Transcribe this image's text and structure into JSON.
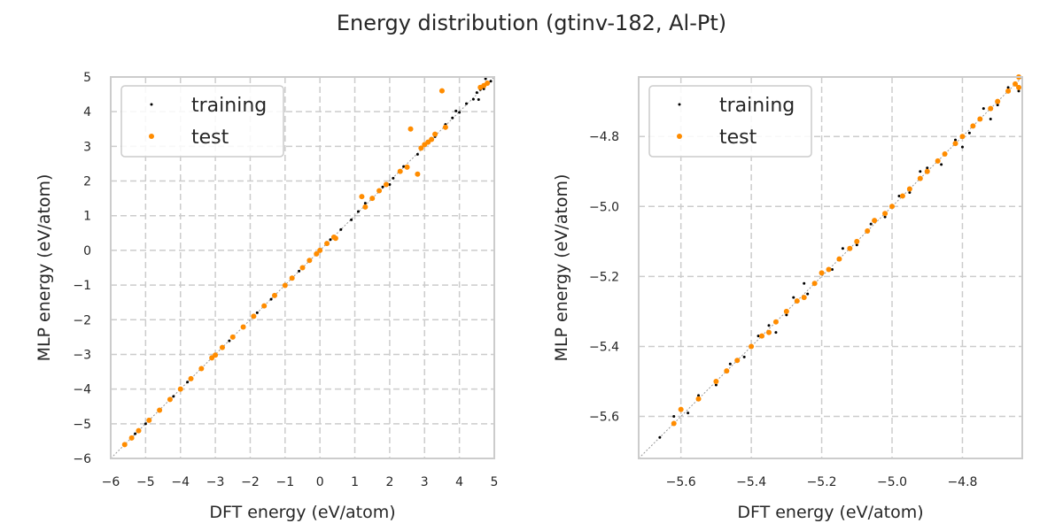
{
  "figure": {
    "title": "Energy distribution (gtinv-182, Al-Pt)"
  },
  "colors": {
    "training": "#000000",
    "test": "#ff8c00",
    "grid": "#cccccc",
    "diagonal": "#999999"
  },
  "chart_data": [
    {
      "type": "scatter",
      "xlabel": "DFT energy (eV/atom)",
      "ylabel": "MLP energy (eV/atom)",
      "xlim": [
        -6,
        5
      ],
      "ylim": [
        -6,
        5
      ],
      "xticks": [
        -6,
        -5,
        -4,
        -3,
        -2,
        -1,
        0,
        1,
        2,
        3,
        4,
        5
      ],
      "xtick_labels": [
        "−6",
        "−5",
        "−4",
        "−3",
        "−2",
        "−1",
        "0",
        "1",
        "2",
        "3",
        "4",
        "5"
      ],
      "yticks": [
        -6,
        -5,
        -4,
        -3,
        -2,
        -1,
        0,
        1,
        2,
        3,
        4,
        5
      ],
      "ytick_labels": [
        "−6",
        "−5",
        "−4",
        "−3",
        "−2",
        "−1",
        "0",
        "1",
        "2",
        "3",
        "4",
        "5"
      ],
      "grid": true,
      "legend_position": "top-left",
      "diagonal": true,
      "series": [
        {
          "name": "training",
          "color": "#000000",
          "points": [
            [
              -5.6,
              -5.6
            ],
            [
              -5.3,
              -5.29
            ],
            [
              -5.0,
              -5.0
            ],
            [
              -4.6,
              -4.6
            ],
            [
              -4.2,
              -4.21
            ],
            [
              -3.8,
              -3.8
            ],
            [
              -3.4,
              -3.4
            ],
            [
              -3.0,
              -3.0
            ],
            [
              -2.6,
              -2.61
            ],
            [
              -2.2,
              -2.2
            ],
            [
              -1.8,
              -1.8
            ],
            [
              -1.4,
              -1.41
            ],
            [
              -1.0,
              -1.0
            ],
            [
              -0.6,
              -0.6
            ],
            [
              -0.3,
              -0.3
            ],
            [
              0.0,
              0.0
            ],
            [
              0.3,
              0.31
            ],
            [
              0.6,
              0.6
            ],
            [
              0.9,
              0.88
            ],
            [
              1.1,
              1.12
            ],
            [
              1.5,
              1.47
            ],
            [
              1.8,
              1.83
            ],
            [
              2.1,
              2.08
            ],
            [
              2.4,
              2.42
            ],
            [
              2.8,
              2.77
            ],
            [
              3.1,
              3.14
            ],
            [
              3.3,
              3.28
            ],
            [
              3.6,
              3.63
            ],
            [
              3.8,
              3.82
            ],
            [
              4.0,
              3.98
            ],
            [
              4.2,
              4.23
            ],
            [
              4.4,
              4.36
            ],
            [
              4.5,
              4.55
            ],
            [
              4.6,
              4.64
            ],
            [
              4.7,
              4.66
            ],
            [
              4.8,
              4.84
            ],
            [
              4.9,
              4.88
            ],
            [
              4.55,
              4.35
            ],
            [
              4.75,
              4.95
            ],
            [
              2.0,
              1.9
            ],
            [
              1.3,
              1.36
            ],
            [
              3.9,
              4.02
            ]
          ]
        },
        {
          "name": "test",
          "color": "#ff8c00",
          "points": [
            [
              -5.6,
              -5.6
            ],
            [
              -5.4,
              -5.41
            ],
            [
              -5.2,
              -5.2
            ],
            [
              -4.9,
              -4.9
            ],
            [
              -4.6,
              -4.61
            ],
            [
              -4.3,
              -4.3
            ],
            [
              -4.0,
              -4.0
            ],
            [
              -3.7,
              -3.7
            ],
            [
              -3.4,
              -3.41
            ],
            [
              -3.1,
              -3.1
            ],
            [
              -3.0,
              -3.02
            ],
            [
              -2.8,
              -2.8
            ],
            [
              -2.5,
              -2.5
            ],
            [
              -2.2,
              -2.21
            ],
            [
              -1.9,
              -1.9
            ],
            [
              -1.6,
              -1.6
            ],
            [
              -1.3,
              -1.3
            ],
            [
              -1.0,
              -1.01
            ],
            [
              -0.8,
              -0.8
            ],
            [
              -0.5,
              -0.5
            ],
            [
              -0.3,
              -0.29
            ],
            [
              -0.1,
              -0.1
            ],
            [
              0.0,
              0.0
            ],
            [
              0.2,
              0.2
            ],
            [
              0.4,
              0.38
            ],
            [
              0.45,
              0.35
            ],
            [
              1.2,
              1.55
            ],
            [
              1.3,
              1.25
            ],
            [
              1.5,
              1.5
            ],
            [
              1.7,
              1.72
            ],
            [
              1.9,
              1.9
            ],
            [
              2.3,
              2.28
            ],
            [
              2.5,
              2.4
            ],
            [
              2.6,
              3.5
            ],
            [
              2.8,
              2.2
            ],
            [
              2.9,
              2.95
            ],
            [
              3.0,
              3.05
            ],
            [
              3.1,
              3.12
            ],
            [
              3.2,
              3.2
            ],
            [
              3.3,
              3.35
            ],
            [
              3.5,
              4.6
            ],
            [
              3.6,
              3.55
            ],
            [
              4.6,
              4.7
            ],
            [
              4.7,
              4.75
            ],
            [
              4.8,
              4.82
            ]
          ]
        }
      ]
    },
    {
      "type": "scatter",
      "xlabel": "DFT energy (eV/atom)",
      "ylabel": "MLP energy (eV/atom)",
      "xlim": [
        -5.72,
        -4.63
      ],
      "ylim": [
        -5.72,
        -4.63
      ],
      "xticks": [
        -5.6,
        -5.4,
        -5.2,
        -5.0,
        -4.8
      ],
      "xtick_labels": [
        "−5.6",
        "−5.4",
        "−5.2",
        "−5.0",
        "−4.8"
      ],
      "yticks": [
        -5.6,
        -5.4,
        -5.2,
        -5.0,
        -4.8
      ],
      "ytick_labels": [
        "−5.6",
        "−5.4",
        "−5.2",
        "−5.0",
        "−4.8"
      ],
      "grid": true,
      "legend_position": "top-left",
      "diagonal": true,
      "series": [
        {
          "name": "training",
          "color": "#000000",
          "points": [
            [
              -5.66,
              -5.66
            ],
            [
              -5.62,
              -5.6
            ],
            [
              -5.58,
              -5.59
            ],
            [
              -5.55,
              -5.54
            ],
            [
              -5.5,
              -5.51
            ],
            [
              -5.46,
              -5.45
            ],
            [
              -5.42,
              -5.43
            ],
            [
              -5.38,
              -5.37
            ],
            [
              -5.35,
              -5.34
            ],
            [
              -5.3,
              -5.31
            ],
            [
              -5.28,
              -5.26
            ],
            [
              -5.24,
              -5.25
            ],
            [
              -5.2,
              -5.19
            ],
            [
              -5.17,
              -5.18
            ],
            [
              -5.14,
              -5.12
            ],
            [
              -5.1,
              -5.11
            ],
            [
              -5.06,
              -5.05
            ],
            [
              -5.02,
              -5.03
            ],
            [
              -4.98,
              -4.97
            ],
            [
              -4.95,
              -4.96
            ],
            [
              -4.9,
              -4.89
            ],
            [
              -4.86,
              -4.88
            ],
            [
              -4.82,
              -4.81
            ],
            [
              -4.78,
              -4.79
            ],
            [
              -4.74,
              -4.72
            ],
            [
              -4.7,
              -4.71
            ],
            [
              -4.67,
              -4.66
            ],
            [
              -4.65,
              -4.65
            ],
            [
              -4.64,
              -4.67
            ],
            [
              -4.72,
              -4.75
            ],
            [
              -5.33,
              -5.36
            ],
            [
              -4.92,
              -4.9
            ],
            [
              -5.25,
              -5.22
            ],
            [
              -4.8,
              -4.83
            ]
          ]
        },
        {
          "name": "test",
          "color": "#ff8c00",
          "points": [
            [
              -5.62,
              -5.62
            ],
            [
              -5.6,
              -5.58
            ],
            [
              -5.55,
              -5.55
            ],
            [
              -5.5,
              -5.5
            ],
            [
              -5.47,
              -5.47
            ],
            [
              -5.44,
              -5.44
            ],
            [
              -5.4,
              -5.4
            ],
            [
              -5.37,
              -5.37
            ],
            [
              -5.35,
              -5.36
            ],
            [
              -5.33,
              -5.33
            ],
            [
              -5.3,
              -5.3
            ],
            [
              -5.27,
              -5.27
            ],
            [
              -5.25,
              -5.26
            ],
            [
              -5.22,
              -5.22
            ],
            [
              -5.2,
              -5.19
            ],
            [
              -5.18,
              -5.18
            ],
            [
              -5.15,
              -5.15
            ],
            [
              -5.12,
              -5.12
            ],
            [
              -5.1,
              -5.1
            ],
            [
              -5.07,
              -5.07
            ],
            [
              -5.05,
              -5.04
            ],
            [
              -5.02,
              -5.02
            ],
            [
              -5.0,
              -5.0
            ],
            [
              -4.97,
              -4.97
            ],
            [
              -4.95,
              -4.95
            ],
            [
              -4.92,
              -4.92
            ],
            [
              -4.9,
              -4.9
            ],
            [
              -4.87,
              -4.87
            ],
            [
              -4.85,
              -4.85
            ],
            [
              -4.82,
              -4.82
            ],
            [
              -4.8,
              -4.8
            ],
            [
              -4.77,
              -4.77
            ],
            [
              -4.75,
              -4.75
            ],
            [
              -4.72,
              -4.72
            ],
            [
              -4.7,
              -4.7
            ],
            [
              -4.67,
              -4.67
            ],
            [
              -4.65,
              -4.65
            ],
            [
              -4.64,
              -4.66
            ],
            [
              -4.64,
              -4.63
            ]
          ]
        }
      ]
    }
  ]
}
